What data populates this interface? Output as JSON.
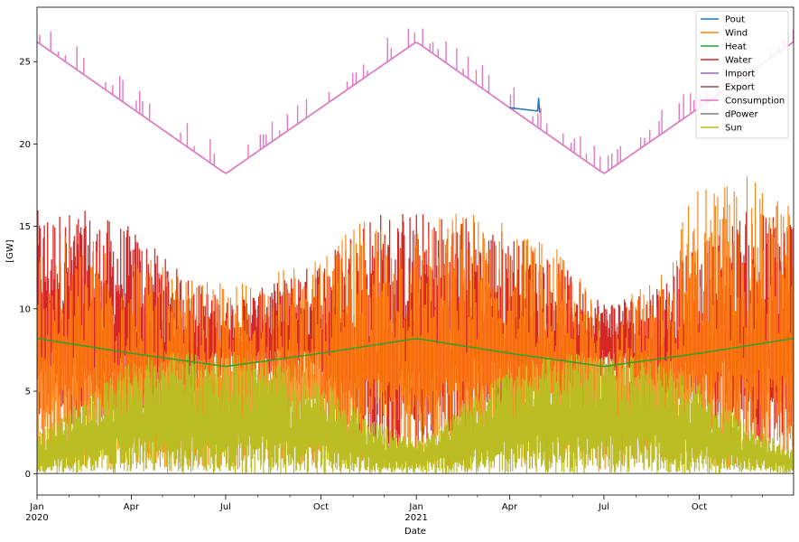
{
  "chart_data": {
    "type": "line",
    "xlabel": "Date",
    "ylabel": "[GW]",
    "xlim": [
      "2020-01-01",
      "2021-12-31"
    ],
    "ylim": [
      -1.3,
      28.3
    ],
    "yticks": [
      0,
      5,
      10,
      15,
      20,
      25
    ],
    "xticks": [
      {
        "date": "2020-01-01",
        "label": "Jan",
        "sublabel": "2020"
      },
      {
        "date": "2020-04-01",
        "label": "Apr",
        "sublabel": ""
      },
      {
        "date": "2020-07-01",
        "label": "Jul",
        "sublabel": ""
      },
      {
        "date": "2020-10-01",
        "label": "Oct",
        "sublabel": ""
      },
      {
        "date": "2021-01-01",
        "label": "Jan",
        "sublabel": "2021"
      },
      {
        "date": "2021-04-01",
        "label": "Apr",
        "sublabel": ""
      },
      {
        "date": "2021-07-01",
        "label": "Jul",
        "sublabel": ""
      },
      {
        "date": "2021-10-01",
        "label": "Oct",
        "sublabel": ""
      }
    ],
    "grid": false,
    "legend_position": "top-right",
    "series": [
      {
        "name": "Pout",
        "color": "#1f77b4",
        "x": [
          "2020-01-01",
          "2020-04-01",
          "2020-07-01",
          "2020-10-01",
          "2021-01-01",
          "2021-04-01",
          "2021-04-28",
          "2021-04-29",
          "2021-04-30",
          "2021-07-01",
          "2021-10-01",
          "2021-12-31"
        ],
        "y": [
          26.2,
          22.2,
          18.2,
          22.2,
          26.2,
          22.2,
          22.0,
          22.8,
          21.9,
          18.2,
          22.2,
          26.2
        ]
      },
      {
        "name": "Wind",
        "color": "#ff7f0e",
        "x": [
          "2020-01-01",
          "2020-02-15",
          "2020-04-01",
          "2020-05-15",
          "2020-07-01",
          "2020-08-15",
          "2020-10-01",
          "2020-11-15",
          "2021-01-01",
          "2021-02-15",
          "2021-04-01",
          "2021-05-15",
          "2021-07-01",
          "2021-08-15",
          "2021-10-01",
          "2021-11-15",
          "2021-12-31"
        ],
        "y_min": [
          0.1,
          0.3,
          0.1,
          0.2,
          0.2,
          0.2,
          0.3,
          0.4,
          0.2,
          0.3,
          0.2,
          0.2,
          0.2,
          0.3,
          0.2,
          0.4,
          0.3
        ],
        "y_max": [
          14.3,
          14.5,
          13.8,
          12.0,
          11.5,
          12.4,
          13.0,
          15.9,
          15.2,
          16.1,
          15.5,
          13.8,
          10.3,
          11.5,
          17.9,
          18.1,
          16.5
        ]
      },
      {
        "name": "Heat",
        "color": "#2ca02c",
        "x": [
          "2020-01-01",
          "2020-04-01",
          "2020-07-01",
          "2020-10-01",
          "2021-01-01",
          "2021-04-01",
          "2021-07-01",
          "2021-10-01",
          "2021-12-31"
        ],
        "y": [
          8.2,
          7.3,
          6.5,
          7.3,
          8.2,
          7.3,
          6.5,
          7.3,
          8.2
        ]
      },
      {
        "name": "Water",
        "color": "#d62728",
        "x": [
          "2020-01-01",
          "2020-02-15",
          "2020-04-01",
          "2020-05-15",
          "2020-07-01",
          "2020-08-15",
          "2020-10-01",
          "2020-11-15",
          "2021-01-01",
          "2021-02-15",
          "2021-04-01",
          "2021-05-15",
          "2021-07-01",
          "2021-08-15",
          "2021-10-01",
          "2021-11-15",
          "2021-12-31"
        ],
        "y_min": [
          2.8,
          3.0,
          3.0,
          4.5,
          5.8,
          5.5,
          4.8,
          1.2,
          1.2,
          2.4,
          3.0,
          4.2,
          5.8,
          5.0,
          3.5,
          2.0,
          1.5
        ],
        "y_max": [
          16.0,
          16.0,
          15.0,
          12.5,
          10.5,
          11.5,
          13.0,
          16.0,
          16.0,
          15.8,
          14.8,
          13.0,
          10.5,
          11.2,
          14.0,
          16.0,
          16.0
        ]
      },
      {
        "name": "Import",
        "color": "#9467bd",
        "x": [
          "2020-01-01",
          "2020-04-01",
          "2020-07-01",
          "2020-10-01",
          "2021-01-01",
          "2021-04-01",
          "2021-07-01",
          "2021-10-01",
          "2021-12-31"
        ],
        "y": [
          26.2,
          22.2,
          18.2,
          22.2,
          26.2,
          22.2,
          18.2,
          22.2,
          26.2
        ]
      },
      {
        "name": "Export",
        "color": "#8c564b",
        "x": [
          "2020-01-01",
          "2021-12-31"
        ],
        "y": [
          0,
          0
        ]
      },
      {
        "name": "Consumption",
        "color": "#e377c2",
        "x": [
          "2020-01-01",
          "2020-04-01",
          "2020-07-01",
          "2020-10-01",
          "2021-01-01",
          "2021-04-01",
          "2021-07-01",
          "2021-10-01",
          "2021-12-31"
        ],
        "y": [
          26.2,
          22.2,
          18.2,
          22.2,
          26.2,
          22.2,
          18.2,
          22.2,
          26.2
        ],
        "spike_max": 27.0
      },
      {
        "name": "dPower",
        "color": "#7f7f7f",
        "x": [
          "2020-01-01",
          "2021-12-31"
        ],
        "y": [
          0,
          0
        ]
      },
      {
        "name": "Sun",
        "color": "#bcbd22",
        "x": [
          "2020-01-01",
          "2020-02-15",
          "2020-04-01",
          "2020-05-15",
          "2020-07-01",
          "2020-08-15",
          "2020-10-01",
          "2020-11-15",
          "2021-01-01",
          "2021-02-15",
          "2021-04-01",
          "2021-05-15",
          "2021-07-01",
          "2021-08-15",
          "2021-10-01",
          "2021-11-15",
          "2021-12-31"
        ],
        "y_min": [
          0,
          0,
          0,
          0,
          0,
          0,
          0,
          0,
          0,
          0,
          0,
          0,
          0,
          0,
          0,
          0,
          0
        ],
        "y_max": [
          2.5,
          4.5,
          6.8,
          7.5,
          7.3,
          7.0,
          5.8,
          3.5,
          2.0,
          4.2,
          6.5,
          7.3,
          7.3,
          7.0,
          5.5,
          3.0,
          1.5
        ]
      }
    ]
  }
}
